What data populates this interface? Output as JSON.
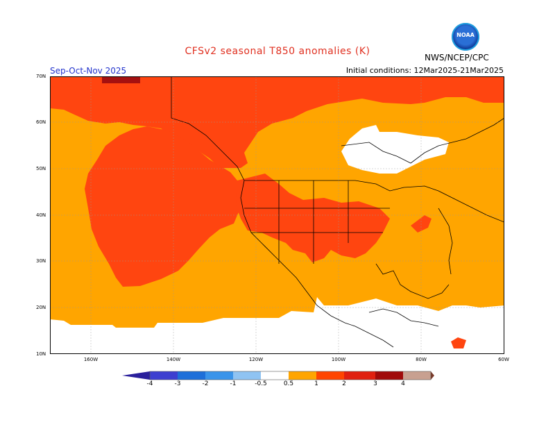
{
  "title": "CFSv2 seasonal T850 anomalies (K)",
  "season": "Sep-Oct-Nov 2025",
  "initial_conditions": "Initial conditions: 12Mar2025-21Mar2025",
  "agency": "NWS/NCEP/CPC",
  "logo_text": "NOAA",
  "lat_labels": [
    "70N",
    "60N",
    "50N",
    "40N",
    "30N",
    "20N",
    "10N"
  ],
  "lon_labels": [
    "160W",
    "140W",
    "120W",
    "100W",
    "80W",
    "60W"
  ],
  "colorbar": {
    "labels": [
      "-4",
      "-3",
      "-2",
      "-1",
      "-0.5",
      "0.5",
      "1",
      "2",
      "3",
      "4"
    ],
    "colors": [
      "#2a1f9c",
      "#3d3fd0",
      "#1e6fd9",
      "#3a94ea",
      "#8fc3f2",
      "#ffffff",
      "#ffa500",
      "#ff4500",
      "#e02010",
      "#a00a0a",
      "#c8a090",
      "#7a3a2a"
    ]
  },
  "map_colors": {
    "below_half": "#ffffff",
    "half_to_one": "#ffa500",
    "one_to_two": "#ff4510",
    "two_to_three": "#a51010",
    "borders": "#000000"
  }
}
